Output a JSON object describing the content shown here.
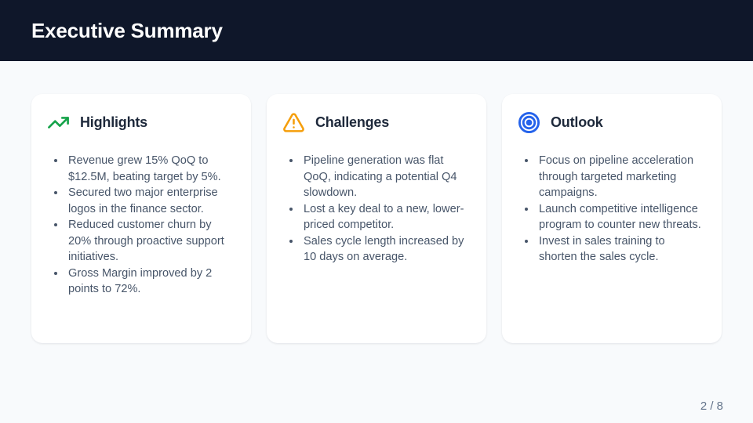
{
  "slide": {
    "title": "Executive Summary",
    "page_indicator": "2 / 8"
  },
  "theme": {
    "header_bg": "#0f172a",
    "page_bg": "#f8fafc",
    "card_bg": "#ffffff",
    "heading_color": "#1e293b",
    "body_color": "#475569",
    "muted_color": "#64748b",
    "highlights_icon_color": "#16a34a",
    "challenges_icon_color": "#f59e0b",
    "outlook_icon_color": "#2563eb"
  },
  "cards": [
    {
      "title": "Highlights",
      "icon": "trending-up-icon",
      "bullets": [
        "Revenue grew 15% QoQ to $12.5M, beating target by 5%.",
        "Secured two major enterprise logos in the finance sector.",
        "Reduced customer churn by 20% through proactive support initiatives.",
        "Gross Margin improved by 2 points to 72%."
      ]
    },
    {
      "title": "Challenges",
      "icon": "alert-triangle-icon",
      "bullets": [
        "Pipeline generation was flat QoQ, indicating a potential Q4 slowdown.",
        "Lost a key deal to a new, lower-priced competitor.",
        "Sales cycle length increased by 10 days on average."
      ]
    },
    {
      "title": "Outlook",
      "icon": "target-icon",
      "bullets": [
        "Focus on pipeline acceleration through targeted marketing campaigns.",
        "Launch competitive intelligence program to counter new threats.",
        "Invest in sales training to shorten the sales cycle."
      ]
    }
  ]
}
